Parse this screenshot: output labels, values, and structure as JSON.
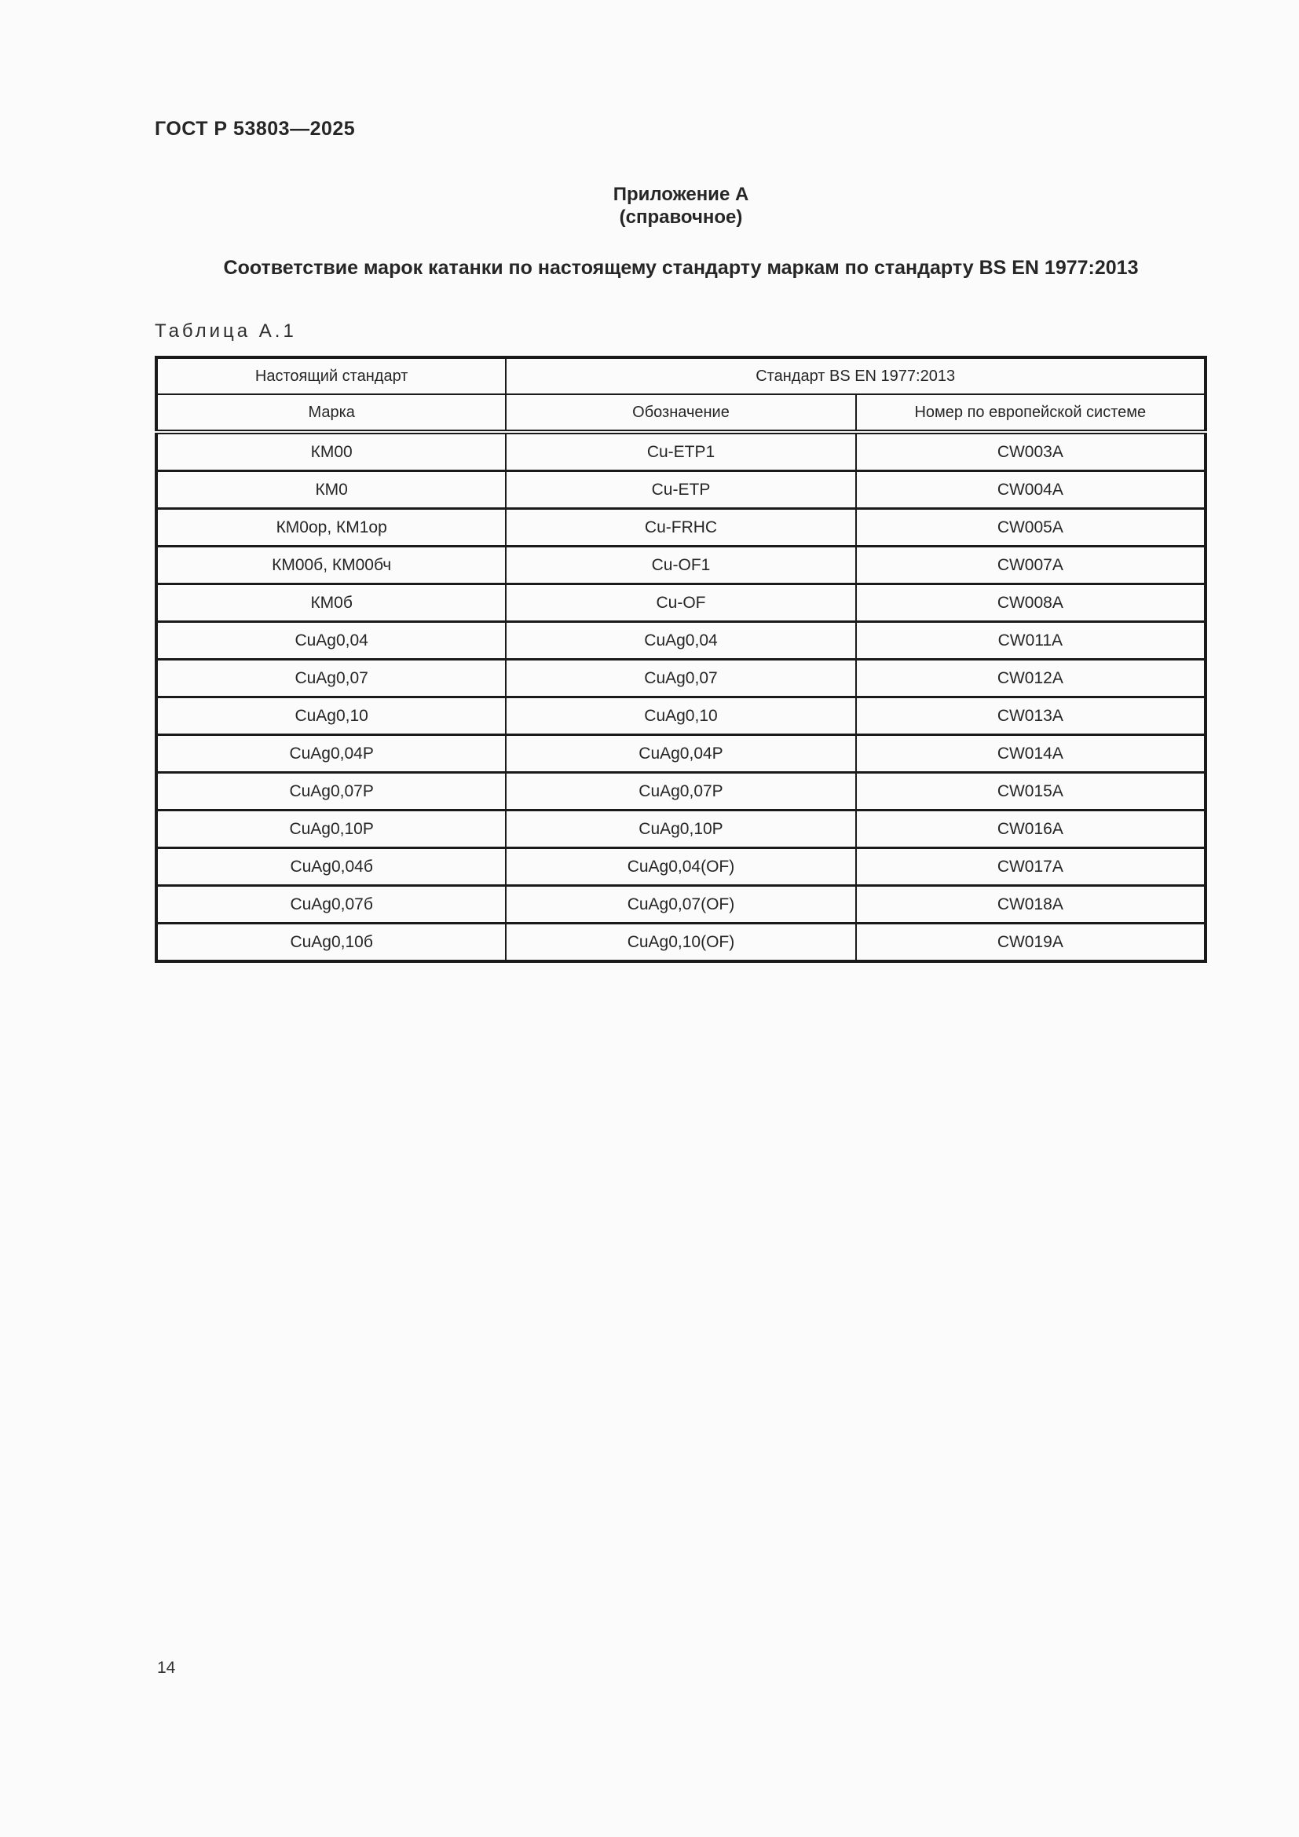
{
  "page": {
    "doc_code": "ГОСТ Р 53803—2025",
    "page_number": "14"
  },
  "appendix": {
    "label": "Приложение А",
    "type": "(справочное)",
    "title": "Соответствие марок катанки по настоящему стандарту маркам по стандарту BS EN 1977:2013"
  },
  "table": {
    "caption": "Таблица А.1",
    "header_row1": [
      "Настоящий стандарт",
      "Стандарт BS EN 1977:2013"
    ],
    "header_row2": [
      "Марка",
      "Обозначение",
      "Номер по европейской системе"
    ],
    "rows": [
      [
        "КМ00",
        "Cu-ETP1",
        "CW003A"
      ],
      [
        "КМ0",
        "Cu-ETP",
        "CW004A"
      ],
      [
        "КМ0ор, КМ1ор",
        "Cu-FRHC",
        "CW005A"
      ],
      [
        "КМ00б, КМ00бч",
        "Cu-OF1",
        "CW007A"
      ],
      [
        "КМ0б",
        "Cu-OF",
        "CW008A"
      ],
      [
        "CuAg0,04",
        "CuAg0,04",
        "CW011A"
      ],
      [
        "CuAg0,07",
        "CuAg0,07",
        "CW012A"
      ],
      [
        "CuAg0,10",
        "CuAg0,10",
        "CW013A"
      ],
      [
        "CuAg0,04P",
        "CuAg0,04P",
        "CW014A"
      ],
      [
        "CuAg0,07P",
        "CuAg0,07P",
        "CW015A"
      ],
      [
        "CuAg0,10P",
        "CuAg0,10P",
        "CW016A"
      ],
      [
        "CuAg0,04б",
        "CuAg0,04(OF)",
        "CW017A"
      ],
      [
        "CuAg0,07б",
        "CuAg0,07(OF)",
        "CW018A"
      ],
      [
        "CuAg0,10б",
        "CuAg0,10(OF)",
        "CW019A"
      ]
    ]
  },
  "colors": {
    "text": "#262626",
    "line": "#1a1a1a",
    "background": "#fbfbfb"
  }
}
